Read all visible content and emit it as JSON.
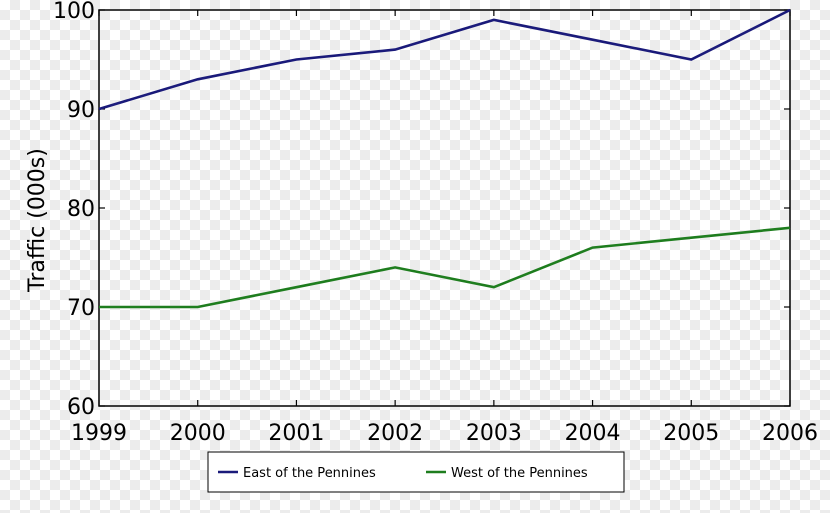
{
  "chart_data": {
    "type": "line",
    "title": "",
    "xlabel": "",
    "ylabel": "Traffic (000s)",
    "x": [
      1999,
      2000,
      2001,
      2002,
      2003,
      2004,
      2005,
      2006
    ],
    "x_tick_labels": [
      "1999",
      "2000",
      "2001",
      "2002",
      "2003",
      "2004",
      "2005",
      "2006"
    ],
    "y_tick_labels": [
      "60",
      "70",
      "80",
      "90",
      "100"
    ],
    "ylim": [
      60,
      100
    ],
    "xlim": [
      1999,
      2006
    ],
    "grid": false,
    "legend_position": "bottom-center",
    "series": [
      {
        "name": "East of the Pennines",
        "color": "#1a1a7a",
        "values": [
          90,
          93,
          95,
          96,
          99,
          97,
          95,
          100
        ]
      },
      {
        "name": "West of the Pennines",
        "color": "#1e7d1e",
        "values": [
          70,
          70,
          72,
          74,
          72,
          76,
          77,
          78
        ]
      }
    ]
  }
}
